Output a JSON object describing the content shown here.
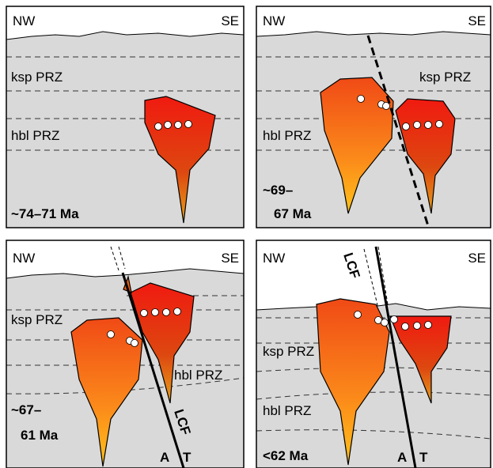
{
  "panels": [
    {
      "nw": "NW",
      "se": "SE",
      "ksp": "ksp PRZ",
      "hbl": "hbl PRZ",
      "age": [
        "~74–71 Ma"
      ]
    },
    {
      "nw": "NW",
      "se": "SE",
      "ksp": "ksp PRZ",
      "hbl": "hbl PRZ",
      "age": [
        "~69–",
        "67 Ma"
      ]
    },
    {
      "nw": "NW",
      "se": "SE",
      "ksp": "ksp PRZ",
      "hbl": "hbl PRZ",
      "age": [
        "~67–",
        "61 Ma"
      ],
      "fault": "LCF",
      "a": "A",
      "t": "T"
    },
    {
      "nw": "NW",
      "se": "SE",
      "ksp": "ksp PRZ",
      "hbl": "hbl PRZ",
      "age": [
        "<62 Ma"
      ],
      "fault": "LCF",
      "a": "A",
      "t": "T"
    }
  ]
}
